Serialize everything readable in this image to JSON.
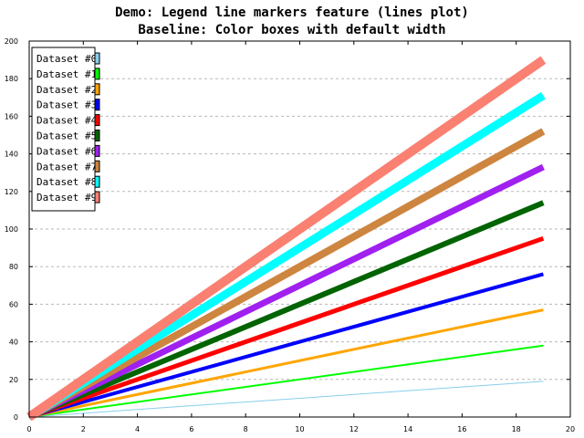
{
  "chart_data": {
    "type": "line",
    "title": "Demo: Legend line markers feature (lines plot)",
    "subtitle": "Baseline: Color boxes with default width",
    "xlabel": "",
    "ylabel": "",
    "xlim": [
      0,
      20
    ],
    "ylim": [
      0,
      200
    ],
    "x_ticks": [
      0,
      2,
      4,
      6,
      8,
      10,
      12,
      14,
      16,
      18,
      20
    ],
    "y_ticks": [
      0,
      20,
      40,
      60,
      80,
      100,
      120,
      140,
      160,
      180,
      200
    ],
    "grid": "horizontal-dashed",
    "legend_placement": "top-left",
    "x": [
      0,
      19
    ],
    "series": [
      {
        "name": "Dataset #0",
        "color": "#87ceeb",
        "values": [
          0,
          19
        ]
      },
      {
        "name": "Dataset #1",
        "color": "#00ff00",
        "values": [
          0,
          38
        ]
      },
      {
        "name": "Dataset #2",
        "color": "#ffa500",
        "values": [
          0,
          57
        ]
      },
      {
        "name": "Dataset #3",
        "color": "#0000ff",
        "values": [
          0,
          76
        ]
      },
      {
        "name": "Dataset #4",
        "color": "#ff0000",
        "values": [
          0,
          95
        ]
      },
      {
        "name": "Dataset #5",
        "color": "#006400",
        "values": [
          0,
          114
        ]
      },
      {
        "name": "Dataset #6",
        "color": "#a020f0",
        "values": [
          0,
          133
        ]
      },
      {
        "name": "Dataset #7",
        "color": "#cd853f",
        "values": [
          0,
          152
        ]
      },
      {
        "name": "Dataset #8",
        "color": "#00ffff",
        "values": [
          0,
          171
        ]
      },
      {
        "name": "Dataset #9",
        "color": "#fa8072",
        "values": [
          0,
          190
        ]
      }
    ]
  }
}
